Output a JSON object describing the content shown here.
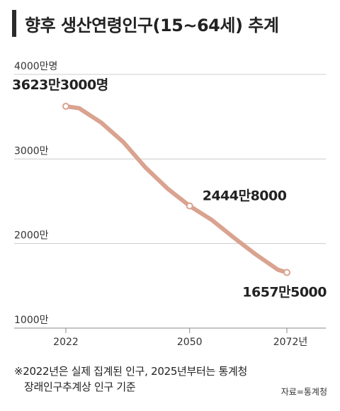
{
  "title": "향후 생산연령인구(15~64세) 추계",
  "footnote": {
    "line1": "※2022년은 실제 집계된 인구, 2025년부터는 통계청",
    "line2": "장래인구추계상 인구 기준"
  },
  "source": "자료=통계청",
  "colors": {
    "line": "#d9a390",
    "grid": "#cccccc",
    "axis": "#888888"
  },
  "chart_data": {
    "type": "line",
    "title": "향후 생산연령인구(15~64세) 추계",
    "ylim": [
      1000,
      4000
    ],
    "y_ticks": [
      {
        "value": 4000,
        "label": "4000만명"
      },
      {
        "value": 3000,
        "label": "3000만"
      },
      {
        "value": 2000,
        "label": "2000만"
      },
      {
        "value": 1000,
        "label": "1000만"
      }
    ],
    "x_ticks": [
      {
        "value": 2022,
        "label": "2022"
      },
      {
        "value": 2050,
        "label": "2050"
      },
      {
        "value": 2072,
        "label": "2072년"
      }
    ],
    "xlim": [
      2022,
      2072
    ],
    "grid": true,
    "series": [
      {
        "x": [
          2022,
          2025,
          2030,
          2035,
          2040,
          2045,
          2050,
          2055,
          2060,
          2065,
          2070,
          2072
        ],
        "values": [
          3623.3,
          3600,
          3430,
          3200,
          2900,
          2650,
          2444.8,
          2280,
          2070,
          1870,
          1690,
          1657.5
        ]
      }
    ],
    "annotations": [
      {
        "x": 2022,
        "y": 3623.3,
        "label": "3623만3000명"
      },
      {
        "x": 2050,
        "y": 2444.8,
        "label": "2444만8000"
      },
      {
        "x": 2072,
        "y": 1657.5,
        "label": "1657만5000"
      }
    ]
  }
}
